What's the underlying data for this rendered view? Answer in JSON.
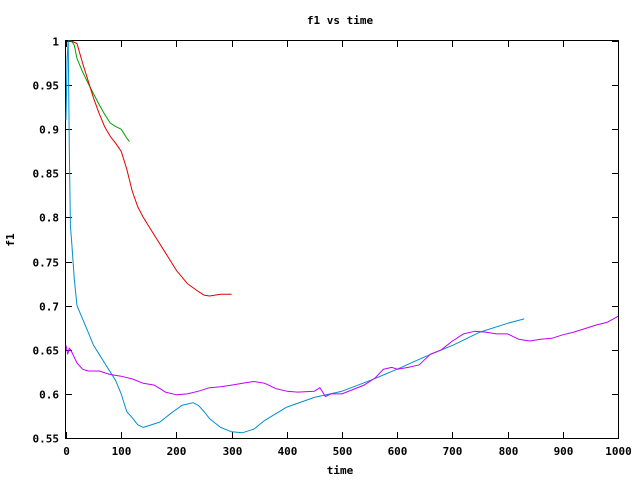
{
  "chart_data": {
    "type": "line",
    "title": "f1 vs time",
    "xlabel": "time",
    "ylabel": "f1",
    "xlim": [
      0,
      1000
    ],
    "ylim": [
      0.55,
      1
    ],
    "x_ticks": [
      0,
      100,
      200,
      300,
      400,
      500,
      600,
      700,
      800,
      900,
      1000
    ],
    "y_ticks": [
      0.55,
      0.6,
      0.65,
      0.7,
      0.75,
      0.8,
      0.85,
      0.9,
      0.95,
      1
    ],
    "x_tick_labels": [
      "0",
      "100",
      "200",
      "300",
      "400",
      "500",
      "600",
      "700",
      "800",
      "900",
      "1000"
    ],
    "y_tick_labels": [
      "0.55",
      "0.6",
      "0.65",
      "0.7",
      "0.75",
      "0.8",
      "0.85",
      "0.9",
      "0.95",
      "1"
    ],
    "grid": false,
    "series": [
      {
        "color": "#00a000",
        "x": [
          5,
          10,
          15,
          20,
          30,
          40,
          50,
          60,
          70,
          80,
          90,
          100,
          110,
          115
        ],
        "y": [
          1.0,
          1.0,
          0.995,
          0.98,
          0.965,
          0.952,
          0.94,
          0.928,
          0.917,
          0.907,
          0.903,
          0.9,
          0.89,
          0.886
        ]
      },
      {
        "color": "#e00000",
        "x": [
          10,
          20,
          30,
          40,
          50,
          60,
          70,
          80,
          90,
          100,
          110,
          120,
          130,
          140,
          160,
          180,
          200,
          220,
          240,
          250,
          260,
          280,
          300
        ],
        "y": [
          1.0,
          0.997,
          0.975,
          0.955,
          0.935,
          0.918,
          0.903,
          0.892,
          0.884,
          0.875,
          0.855,
          0.83,
          0.812,
          0.8,
          0.78,
          0.76,
          0.74,
          0.725,
          0.716,
          0.712,
          0.711,
          0.713,
          0.713
        ]
      },
      {
        "color": "#008fd0",
        "x": [
          0,
          2,
          4,
          6,
          8,
          10,
          15,
          20,
          30,
          40,
          50,
          60,
          70,
          80,
          90,
          100,
          110,
          120,
          130,
          140,
          150,
          170,
          190,
          210,
          230,
          240,
          250,
          260,
          280,
          300,
          320,
          340,
          360,
          400,
          450,
          500,
          550,
          600,
          650,
          700,
          750,
          800,
          830
        ],
        "y": [
          0.91,
          0.98,
          1.0,
          0.88,
          0.79,
          0.775,
          0.73,
          0.7,
          0.685,
          0.67,
          0.655,
          0.645,
          0.635,
          0.625,
          0.615,
          0.6,
          0.58,
          0.573,
          0.565,
          0.562,
          0.564,
          0.568,
          0.578,
          0.587,
          0.59,
          0.587,
          0.58,
          0.572,
          0.562,
          0.557,
          0.556,
          0.56,
          0.57,
          0.585,
          0.596,
          0.603,
          0.615,
          0.628,
          0.642,
          0.655,
          0.67,
          0.68,
          0.685
        ]
      },
      {
        "color": "#c000ff",
        "x": [
          0,
          3,
          6,
          10,
          20,
          30,
          40,
          60,
          80,
          100,
          120,
          140,
          160,
          180,
          200,
          220,
          240,
          260,
          280,
          300,
          320,
          340,
          360,
          380,
          400,
          420,
          450,
          460,
          470,
          480,
          500,
          520,
          540,
          560,
          575,
          590,
          600,
          620,
          640,
          660,
          680,
          700,
          720,
          740,
          760,
          780,
          800,
          820,
          840,
          860,
          880,
          900,
          920,
          940,
          960,
          980,
          1000
        ],
        "y": [
          0.655,
          0.645,
          0.652,
          0.648,
          0.635,
          0.628,
          0.626,
          0.626,
          0.622,
          0.62,
          0.617,
          0.612,
          0.61,
          0.602,
          0.599,
          0.6,
          0.603,
          0.607,
          0.608,
          0.61,
          0.612,
          0.614,
          0.612,
          0.606,
          0.603,
          0.602,
          0.603,
          0.607,
          0.597,
          0.6,
          0.6,
          0.605,
          0.61,
          0.618,
          0.628,
          0.63,
          0.628,
          0.63,
          0.633,
          0.645,
          0.65,
          0.66,
          0.668,
          0.671,
          0.67,
          0.668,
          0.668,
          0.662,
          0.66,
          0.662,
          0.663,
          0.667,
          0.67,
          0.674,
          0.678,
          0.681,
          0.688
        ]
      }
    ]
  }
}
